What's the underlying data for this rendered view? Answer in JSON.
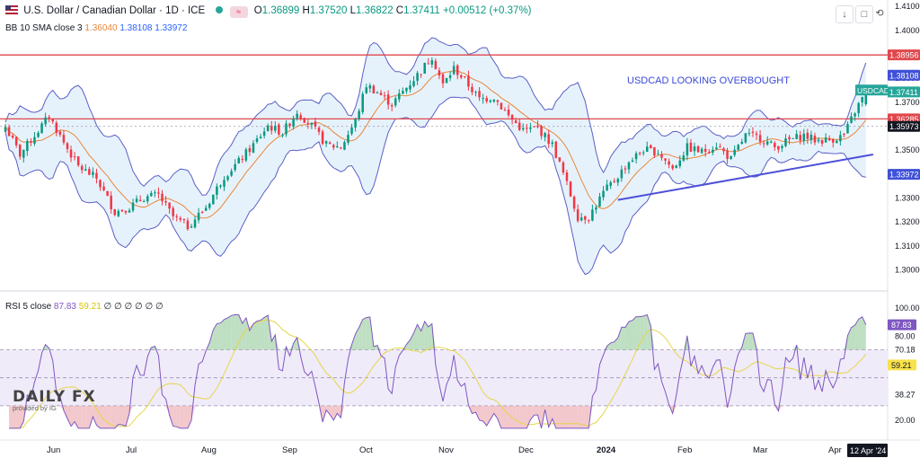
{
  "header": {
    "symbol": "U.S. Dollar / Canadian Dollar · 1D · ICE",
    "o_label": "O",
    "o": "1.36899",
    "h_label": "H",
    "h": "1.37520",
    "l_label": "L",
    "l": "1.36822",
    "c_label": "C",
    "c": "1.37411",
    "change": "+0.00512 (+0.37%)"
  },
  "bb_legend": {
    "label": "BB 10 SMA close 3",
    "basis": "1.36040",
    "upper": "1.38108",
    "lower": "1.33972"
  },
  "rsi_legend": {
    "label": "RSI 5 close",
    "rsi": "87.83",
    "ma": "59.21",
    "extra": "∅ ∅ ∅ ∅ ∅ ∅"
  },
  "toolbar": {
    "down_icon": "↓",
    "max_icon": "□",
    "restore_icon": "⟲"
  },
  "logo": {
    "main": "DAILY FX",
    "sub": "provided by IG"
  },
  "annotation": "USDCAD LOOKING OVERBOUGHT",
  "colors": {
    "up": "#089981",
    "down": "#f23645",
    "band": "#5b5fc7",
    "basis": "#e8873a",
    "level": "#e0474c",
    "trend": "#4e50d8",
    "rsi": "#7e57c2",
    "rsi_ma": "#e5d64a"
  },
  "chart_data": [
    {
      "type": "candlestick",
      "title": "U.S. Dollar / Canadian Dollar · 1D · ICE",
      "x_ticks": [
        "Jun",
        "Jul",
        "Aug",
        "Sep",
        "Oct",
        "Nov",
        "Dec",
        "2024",
        "Feb",
        "Mar",
        "Apr"
      ],
      "y_ticks": [
        "1.41000",
        "1.40000",
        "1.39000",
        "1.38000",
        "1.37000",
        "1.36000",
        "1.35000",
        "1.34000",
        "1.33000",
        "1.32000",
        "1.31000",
        "1.30000"
      ],
      "ylim": [
        1.2925,
        1.4125
      ],
      "series_path_close": [
        [
          0,
          1.3595
        ],
        [
          4,
          1.348
        ],
        [
          8,
          1.356
        ],
        [
          12,
          1.364
        ],
        [
          16,
          1.353
        ],
        [
          20,
          1.343
        ],
        [
          25,
          1.338
        ],
        [
          30,
          1.324
        ],
        [
          34,
          1.326
        ],
        [
          38,
          1.33
        ],
        [
          42,
          1.331
        ],
        [
          46,
          1.322
        ],
        [
          50,
          1.318
        ],
        [
          55,
          1.326
        ],
        [
          60,
          1.339
        ],
        [
          64,
          1.345
        ],
        [
          68,
          1.352
        ],
        [
          72,
          1.36
        ],
        [
          76,
          1.357
        ],
        [
          80,
          1.366
        ],
        [
          84,
          1.36
        ],
        [
          88,
          1.352
        ],
        [
          92,
          1.351
        ],
        [
          96,
          1.362
        ],
        [
          99,
          1.377
        ],
        [
          102,
          1.374
        ],
        [
          106,
          1.369
        ],
        [
          110,
          1.376
        ],
        [
          114,
          1.383
        ],
        [
          117,
          1.389
        ],
        [
          120,
          1.377
        ],
        [
          123,
          1.384
        ],
        [
          126,
          1.379
        ],
        [
          130,
          1.371
        ],
        [
          134,
          1.372
        ],
        [
          138,
          1.364
        ],
        [
          142,
          1.358
        ],
        [
          146,
          1.359
        ],
        [
          150,
          1.352
        ],
        [
          153,
          1.34
        ],
        [
          157,
          1.322
        ],
        [
          160,
          1.322
        ],
        [
          164,
          1.332
        ],
        [
          168,
          1.339
        ],
        [
          171,
          1.345
        ],
        [
          175,
          1.35
        ],
        [
          179,
          1.349
        ],
        [
          183,
          1.342
        ],
        [
          187,
          1.351
        ],
        [
          191,
          1.349
        ],
        [
          195,
          1.352
        ],
        [
          199,
          1.346
        ],
        [
          203,
          1.356
        ],
        [
          207,
          1.355
        ],
        [
          211,
          1.351
        ],
        [
          215,
          1.354
        ],
        [
          219,
          1.356
        ],
        [
          222,
          1.354
        ],
        [
          226,
          1.354
        ],
        [
          230,
          1.356
        ],
        [
          233,
          1.366
        ],
        [
          236,
          1.3741
        ]
      ],
      "horizontal_levels": [
        1.38956,
        1.36285
      ],
      "price_labels": [
        {
          "text": "1.38956",
          "value": 1.38956,
          "bg": "#e0474c"
        },
        {
          "text": "1.38108",
          "value": 1.38108,
          "bg": "#3f51d8"
        },
        {
          "text": "USDCAD",
          "value": 1.3749,
          "bg": "#26a69a"
        },
        {
          "text": "1.37411",
          "value": 1.37411,
          "bg": "#26a69a"
        },
        {
          "text": "1.36285",
          "value": 1.36285,
          "bg": "#e0474c"
        },
        {
          "text": "1.35973",
          "value": 1.35973,
          "bg": "#131722"
        },
        {
          "text": "1.33972",
          "value": 1.33972,
          "bg": "#3f51d8"
        }
      ],
      "trendline": {
        "from": [
          168,
          1.329
        ],
        "to": [
          238,
          1.348
        ]
      }
    },
    {
      "type": "line",
      "title": "RSI 5 close",
      "y_ticks": [
        "100.00",
        "80.00",
        "70.18",
        "38.27",
        "20.00"
      ],
      "ylim": [
        12,
        103
      ],
      "levels": [
        70,
        50,
        30
      ],
      "value_labels": [
        {
          "text": "87.83",
          "value": 87.83,
          "bg": "#7e57c2"
        },
        {
          "text": "59.21",
          "value": 59.21,
          "bg": "#f7e24a"
        }
      ]
    }
  ],
  "date_tag": "12 Apr '24"
}
